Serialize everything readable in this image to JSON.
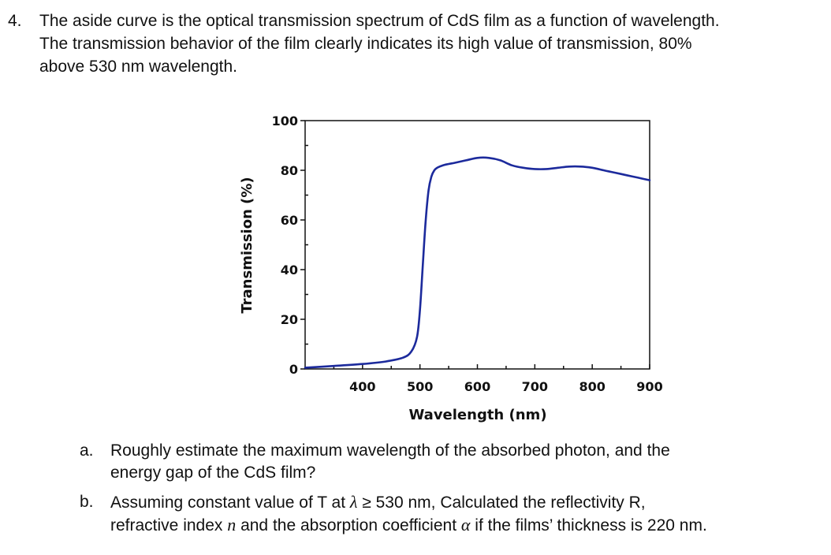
{
  "question": {
    "number": "4.",
    "lines": [
      "The aside curve is the optical transmission spectrum of CdS film as a function of wavelength.",
      "The transmission behavior of the film clearly indicates its high value of transmission, 80%",
      "above 530 nm wavelength."
    ]
  },
  "chart_data": {
    "type": "line",
    "xlabel": "Wavelength (nm)",
    "ylabel": "Transmission (%)",
    "xlim": [
      300,
      900
    ],
    "ylim": [
      0,
      100
    ],
    "x_ticks": [
      400,
      500,
      600,
      700,
      800,
      900
    ],
    "y_ticks": [
      0,
      20,
      40,
      60,
      80,
      100
    ],
    "series": [
      {
        "color": "#1c2a9c",
        "x": [
          300,
          350,
          400,
          440,
          470,
          485,
          495,
          500,
          505,
          510,
          515,
          520,
          525,
          530,
          540,
          560,
          580,
          600,
          620,
          640,
          660,
          680,
          700,
          720,
          740,
          760,
          780,
          800,
          820,
          840,
          860,
          880,
          900
        ],
        "y": [
          0.5,
          1.2,
          2.0,
          3.0,
          4.5,
          7.0,
          13.0,
          24.0,
          42.0,
          60.0,
          72.0,
          77.5,
          80.0,
          81.0,
          82.0,
          83.0,
          84.0,
          85.0,
          85.0,
          84.0,
          82.0,
          81.0,
          80.5,
          80.5,
          81.0,
          81.5,
          81.5,
          81.0,
          80.0,
          79.0,
          78.0,
          77.0,
          76.0
        ]
      }
    ]
  },
  "part_a": {
    "letter": "a.",
    "lines": [
      "Roughly estimate the maximum wavelength of the absorbed photon, and the",
      "energy gap of the CdS film?"
    ]
  },
  "part_b": {
    "letter": "b.",
    "line1_before": "Assuming constant value of T at ",
    "line1_symbol": "λ",
    "line1_after": " ≥ 530 nm, Calculated the reflectivity R,",
    "line2_before": "refractive index ",
    "line2_symbol_n": "n",
    "line2_middle": " and the absorption coefficient ",
    "line2_symbol_alpha": "α",
    "line2_after": " if the films’ thickness is 220 nm."
  }
}
